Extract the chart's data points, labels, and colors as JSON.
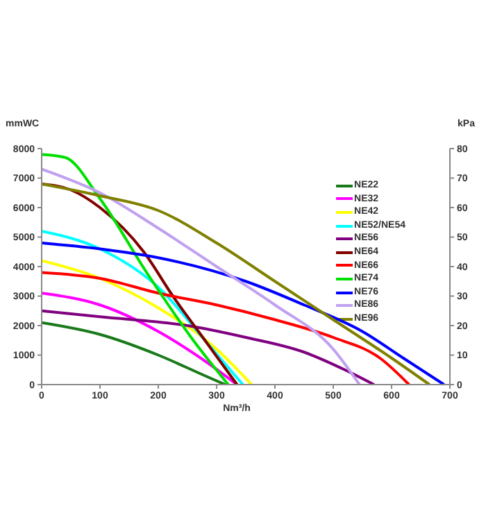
{
  "chart_data": {
    "type": "line",
    "xlabel": "Nm³/h",
    "ylabel": "mmWC",
    "y2label": "kPa",
    "xlim": [
      0,
      700
    ],
    "xticks": [
      0,
      100,
      200,
      300,
      400,
      500,
      600,
      700
    ],
    "ylim": [
      0,
      8000
    ],
    "yticks": [
      0,
      1000,
      2000,
      3000,
      4000,
      5000,
      6000,
      7000,
      8000
    ],
    "y2lim": [
      0,
      80
    ],
    "y2ticks": [
      0,
      10,
      20,
      30,
      40,
      50,
      60,
      70,
      80
    ],
    "grid": false,
    "legend": "top right",
    "marker": "none",
    "line_style": "solid",
    "series": [
      {
        "name": "NE22",
        "color": "#1a7a1a",
        "x": [
          0,
          100,
          200,
          280,
          315
        ],
        "values": [
          2100,
          1700,
          1000,
          300,
          0
        ]
      },
      {
        "name": "NE32",
        "color": "#ff00ff",
        "x": [
          0,
          100,
          200,
          280,
          335
        ],
        "values": [
          3100,
          2700,
          1800,
          800,
          0
        ]
      },
      {
        "name": "NE42",
        "color": "#ffff00",
        "x": [
          0,
          100,
          200,
          300,
          360
        ],
        "values": [
          4200,
          3600,
          2600,
          1200,
          0
        ]
      },
      {
        "name": "NE52/NE54",
        "color": "#00ffff",
        "x": [
          0,
          100,
          200,
          280,
          345
        ],
        "values": [
          5200,
          4600,
          3300,
          1500,
          0
        ]
      },
      {
        "name": "NE56",
        "color": "#800080",
        "x": [
          0,
          100,
          250,
          350,
          450,
          520,
          570
        ],
        "values": [
          2500,
          2300,
          2000,
          1600,
          1100,
          500,
          0
        ]
      },
      {
        "name": "NE64",
        "color": "#800000",
        "x": [
          0,
          50,
          100,
          175,
          225,
          280,
          335
        ],
        "values": [
          6800,
          6600,
          6000,
          4500,
          3000,
          1500,
          0
        ]
      },
      {
        "name": "NE66",
        "color": "#ff0000",
        "x": [
          0,
          100,
          200,
          300,
          400,
          500,
          580,
          630
        ],
        "values": [
          3800,
          3600,
          3100,
          2700,
          2200,
          1600,
          900,
          0
        ]
      },
      {
        "name": "NE74",
        "color": "#00e000",
        "x": [
          0,
          40,
          100,
          180,
          260,
          320
        ],
        "values": [
          7800,
          7700,
          6300,
          3800,
          1500,
          0
        ]
      },
      {
        "name": "NE76",
        "color": "#0000ff",
        "x": [
          0,
          100,
          200,
          350,
          450,
          550,
          620,
          690
        ],
        "values": [
          4800,
          4600,
          4300,
          3500,
          2700,
          1800,
          900,
          0
        ]
      },
      {
        "name": "NE86",
        "color": "#c0a0f0",
        "x": [
          0,
          100,
          200,
          300,
          400,
          500,
          545
        ],
        "values": [
          7300,
          6500,
          5300,
          4000,
          2700,
          1200,
          0
        ]
      },
      {
        "name": "NE96",
        "color": "#808000",
        "x": [
          0,
          100,
          200,
          300,
          400,
          500,
          600,
          665
        ],
        "values": [
          6800,
          6400,
          5900,
          4800,
          3500,
          2200,
          900,
          0
        ]
      }
    ]
  }
}
